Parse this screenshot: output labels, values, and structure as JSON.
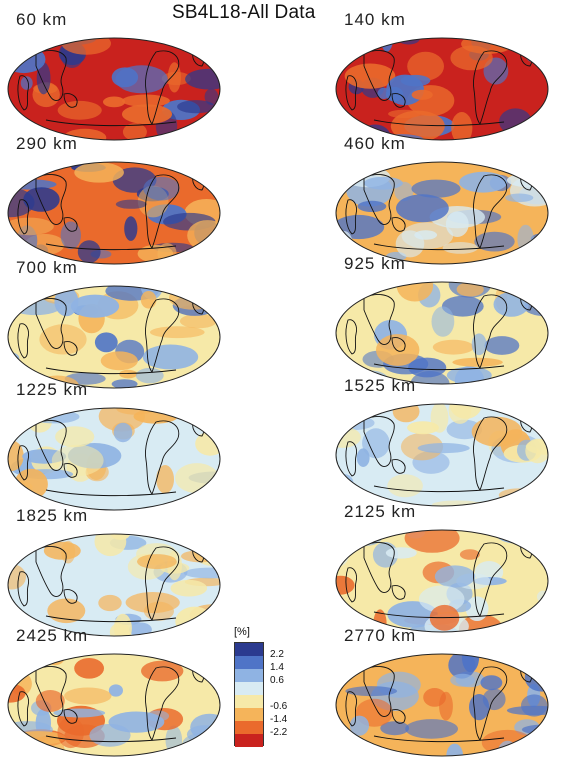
{
  "title": "SB4L18-All Data",
  "colorbar": {
    "unit": "[%]",
    "ticks": [
      "2.2",
      "1.4",
      "0.6",
      "-0.6",
      "-1.4",
      "-2.2"
    ],
    "colors": [
      "#2b3a8f",
      "#4f74c7",
      "#8fb3e3",
      "#d8ebf3",
      "#f6e9a8",
      "#f5b45a",
      "#ea6a2c",
      "#c9221e"
    ]
  },
  "panels": [
    {
      "depth": "60 km",
      "palette": [
        "#c9221e",
        "#2b3a8f",
        "#ea6a2c",
        "#4f74c7"
      ]
    },
    {
      "depth": "140 km",
      "palette": [
        "#c9221e",
        "#ea6a2c",
        "#2b3a8f",
        "#4f74c7"
      ]
    },
    {
      "depth": "290 km",
      "palette": [
        "#ea6a2c",
        "#4f74c7",
        "#f5b45a",
        "#2b3a8f"
      ]
    },
    {
      "depth": "460 km",
      "palette": [
        "#f5b45a",
        "#8fb3e3",
        "#d8ebf3",
        "#4f74c7"
      ]
    },
    {
      "depth": "700 km",
      "palette": [
        "#f6e9a8",
        "#8fb3e3",
        "#f5b45a",
        "#4f74c7"
      ]
    },
    {
      "depth": "925 km",
      "palette": [
        "#f6e9a8",
        "#8fb3e3",
        "#f5b45a",
        "#4f74c7"
      ]
    },
    {
      "depth": "1225 km",
      "palette": [
        "#d8ebf3",
        "#f6e9a8",
        "#8fb3e3",
        "#f5b45a"
      ]
    },
    {
      "depth": "1525 km",
      "palette": [
        "#d8ebf3",
        "#f6e9a8",
        "#8fb3e3",
        "#f5b45a"
      ]
    },
    {
      "depth": "1825 km",
      "palette": [
        "#d8ebf3",
        "#f6e9a8",
        "#8fb3e3",
        "#f5b45a"
      ]
    },
    {
      "depth": "2125 km",
      "palette": [
        "#f6e9a8",
        "#d8ebf3",
        "#ea6a2c",
        "#8fb3e3"
      ]
    },
    {
      "depth": "2425 km",
      "palette": [
        "#f6e9a8",
        "#f5b45a",
        "#8fb3e3",
        "#ea6a2c"
      ]
    },
    {
      "depth": "2770 km",
      "palette": [
        "#f5b45a",
        "#8fb3e3",
        "#ea6a2c",
        "#4f74c7"
      ]
    }
  ]
}
